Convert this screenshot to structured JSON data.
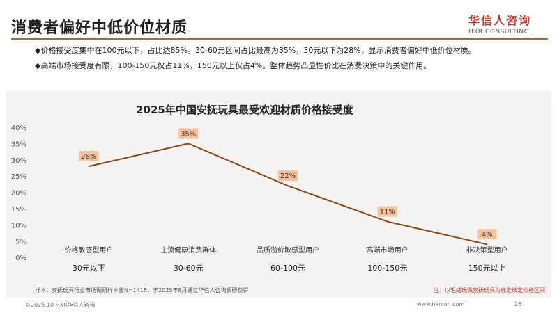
{
  "header": {
    "title": "消费者偏好中低价位材质",
    "logo_cn": "华信人咨询",
    "logo_en": "HXR CONSULTING"
  },
  "bullets": [
    "◆价格接受度集中在100元以下，占比达85%。30-60元区间占比最高为35%，30元以下为28%，显示消费者偏好中低价位材质。",
    "◆高端市场接受度有限，100-150元仅占11%，150元以上仅占4%。整体趋势凸显性价比在消费决策中的关键作用。"
  ],
  "chart_data": {
    "type": "line",
    "title": "2025年中国安抚玩具最受欢迎材质价格接受度",
    "categories": [
      "30元以下",
      "30-60元",
      "60-100元",
      "100-150元",
      "150元以上"
    ],
    "segments": [
      "价格敏感型用户",
      "主流健康消费群体",
      "品质溢价敏感型用户",
      "高端市场用户",
      "非决策型用户"
    ],
    "values": [
      28,
      35,
      22,
      11,
      4
    ],
    "data_labels": [
      "28%",
      "35%",
      "22%",
      "11%",
      "4%"
    ],
    "ylim": [
      0,
      40
    ],
    "yticks": [
      "0%",
      "5%",
      "10%",
      "15%",
      "20%",
      "25%",
      "30%",
      "35%",
      "40%"
    ],
    "ytick_values": [
      0,
      5,
      10,
      15,
      20,
      25,
      30,
      35,
      40
    ],
    "line_color": "#8b4513",
    "label_fill": "#f4c19c",
    "grid": false,
    "source_note": "样本：安抚玩具行业市场调研样本量N=1415，于2025年8月通过华信人咨询调研获得",
    "footnote": "注：以毛绒玩偶安抚玩具为标准核定价格区间"
  },
  "footer": {
    "copyright": "©2025.10 HXR华信人咨询",
    "url": "www.hxrcon.com",
    "page": "26"
  }
}
